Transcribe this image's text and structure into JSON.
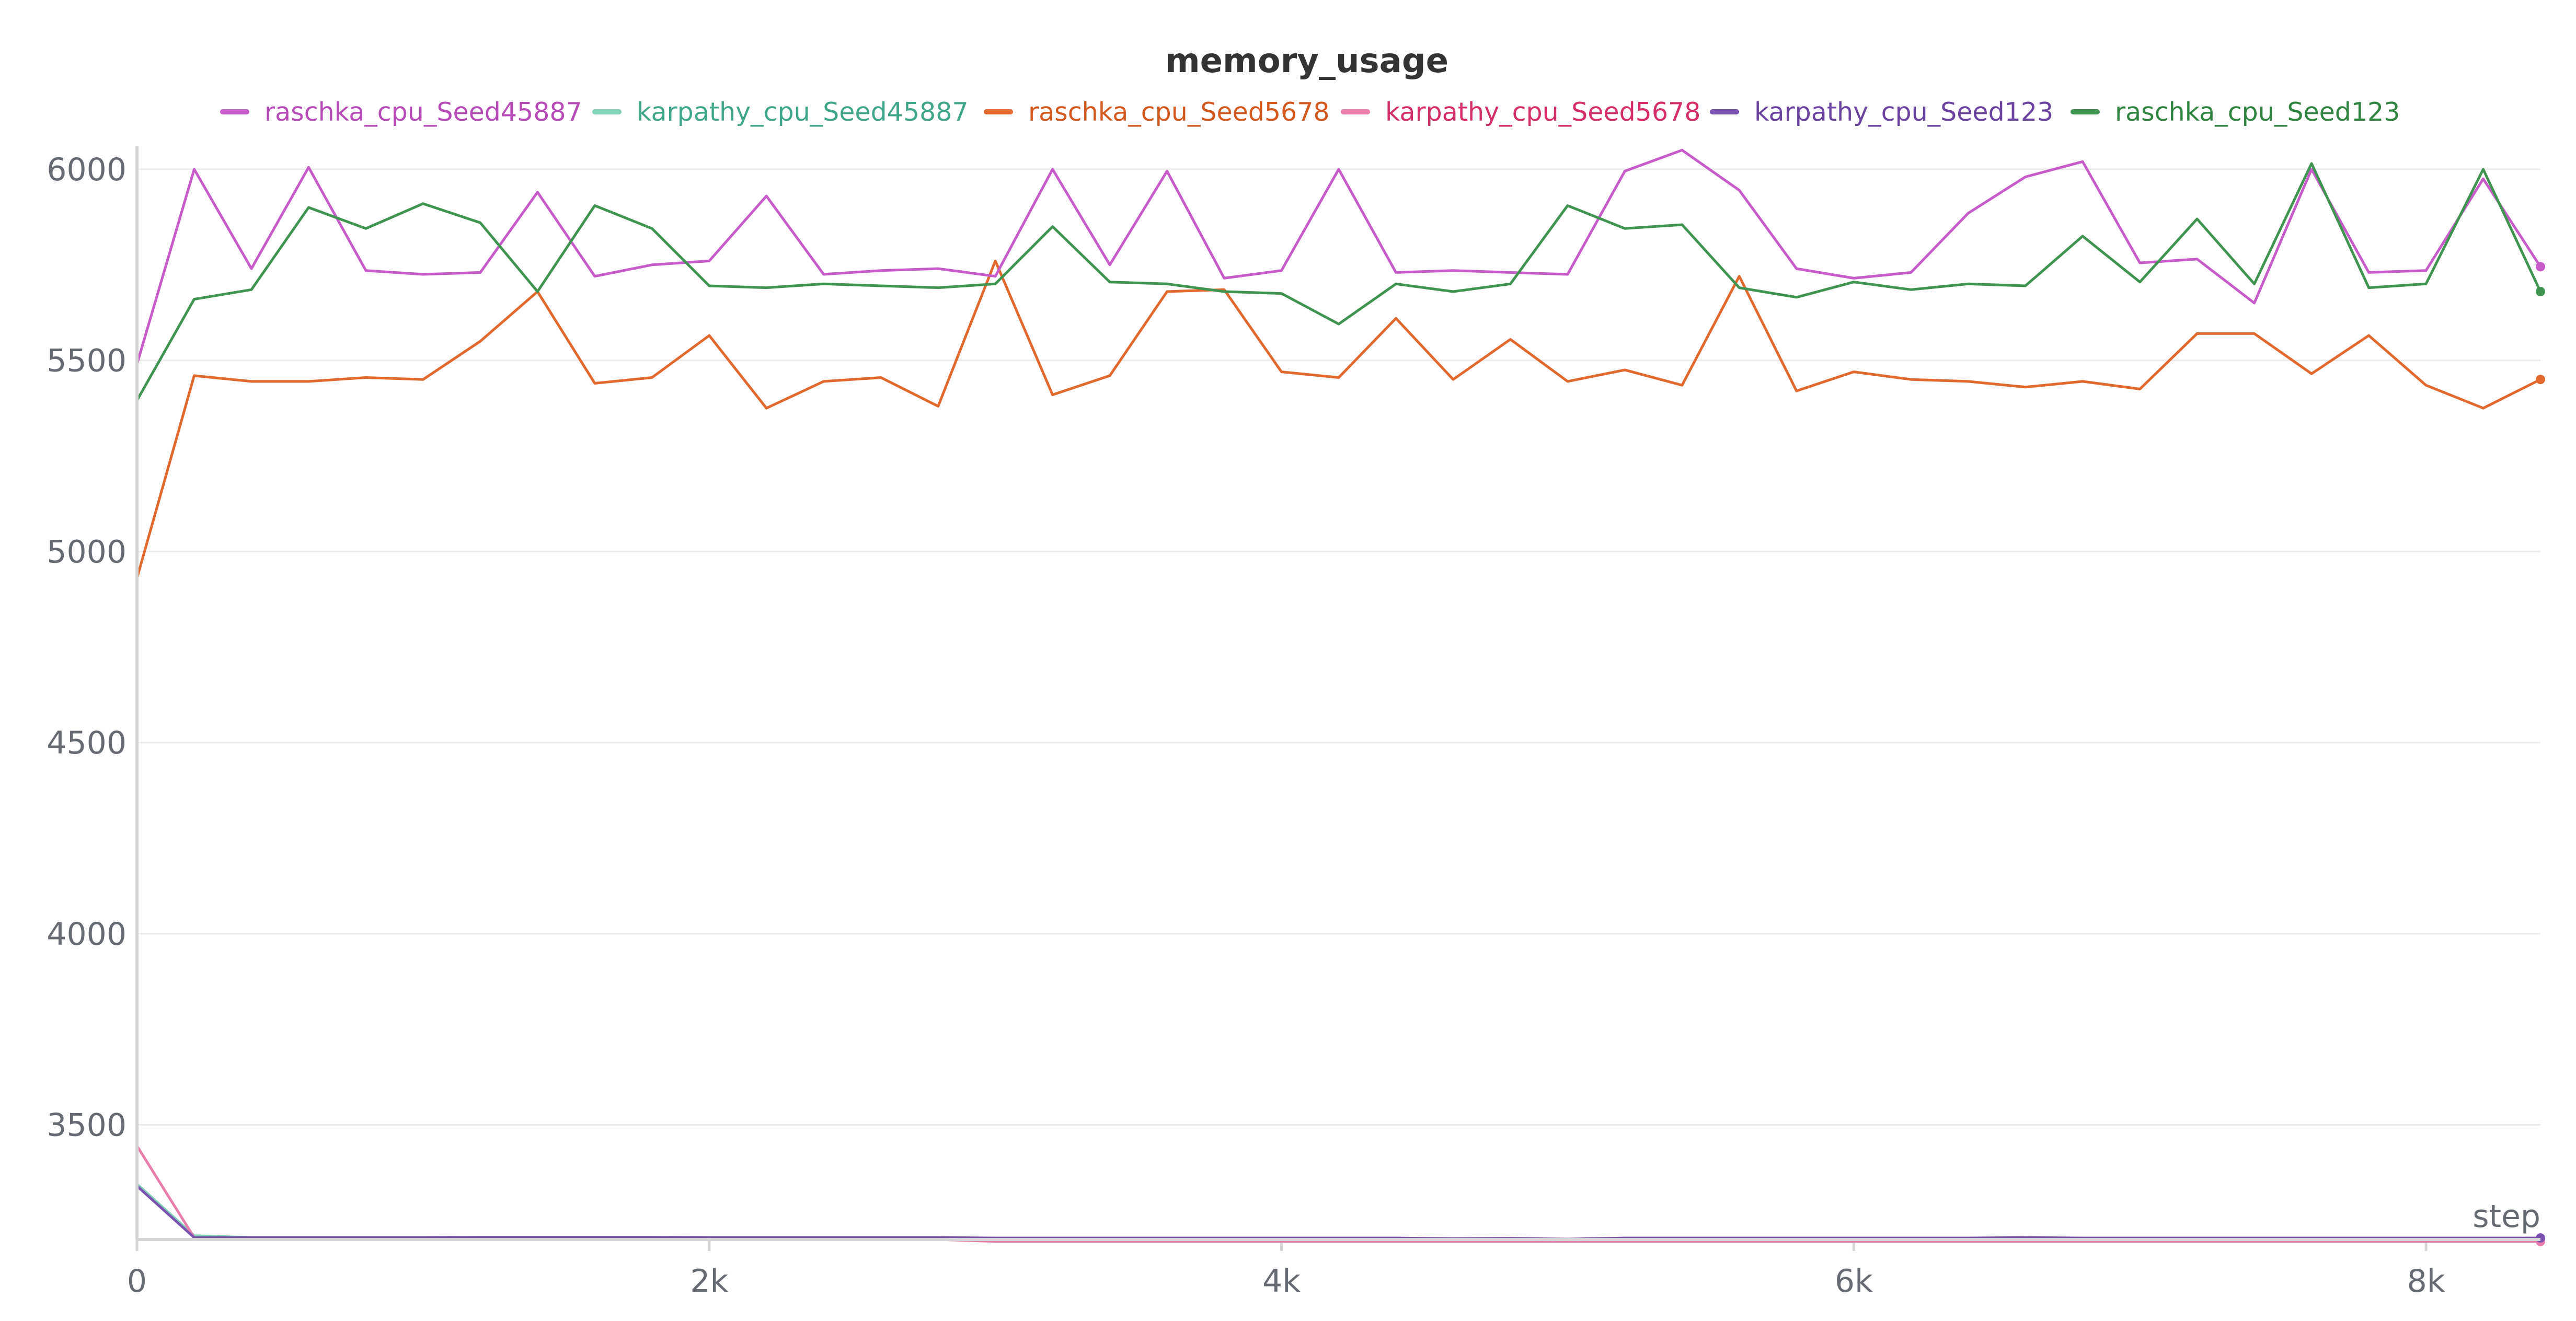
{
  "chart_data": {
    "type": "line",
    "title": "memory_usage",
    "xlabel": "step",
    "ylabel": "",
    "xlim": [
      0,
      8400
    ],
    "ylim": [
      3200,
      6060
    ],
    "x_ticks": [
      0,
      2000,
      4000,
      6000,
      8000
    ],
    "x_tick_labels": [
      "0",
      "2k",
      "4k",
      "6k",
      "8k"
    ],
    "y_ticks": [
      3500,
      4000,
      4500,
      5000,
      5500,
      6000
    ],
    "y_tick_labels": [
      "3500",
      "4000",
      "4500",
      "5000",
      "5500",
      "6000"
    ],
    "grid": true,
    "legend_position": "top",
    "x": [
      0,
      200,
      400,
      600,
      800,
      1000,
      1200,
      1400,
      1600,
      1800,
      2000,
      2200,
      2400,
      2600,
      2800,
      3000,
      3200,
      3400,
      3600,
      3800,
      4000,
      4200,
      4400,
      4600,
      4800,
      5000,
      5200,
      5400,
      5600,
      5800,
      6000,
      6200,
      6400,
      6600,
      6800,
      7000,
      7200,
      7400,
      7600,
      7800,
      8000,
      8200,
      8400
    ],
    "series": [
      {
        "name": "raschka_cpu_Seed45887",
        "color": "#c65bc9",
        "values": [
          5490,
          6000,
          5740,
          6005,
          5735,
          5725,
          5730,
          5940,
          5720,
          5750,
          5760,
          5930,
          5725,
          5735,
          5740,
          5720,
          6000,
          5750,
          5995,
          5715,
          5735,
          6000,
          5730,
          5735,
          5730,
          5725,
          5995,
          6050,
          5945,
          5740,
          5715,
          5730,
          5885,
          5980,
          6020,
          5755,
          5765,
          5650,
          6000,
          5730,
          5735,
          5975,
          5745
        ]
      },
      {
        "name": "karpathy_cpu_Seed45887",
        "color": "#7fd1b7",
        "values": [
          3345,
          3210,
          3205,
          3205,
          3205,
          3205,
          3205,
          3205,
          3205,
          3205,
          3205,
          3205,
          3205,
          3205,
          3205,
          3195,
          3195,
          3195,
          3195,
          3195,
          3195,
          3195,
          3195,
          3195,
          3195,
          3195,
          3195,
          3195,
          3195,
          3195,
          3195,
          3195,
          3195,
          3195,
          3195,
          3195,
          3195,
          3195,
          3195,
          3195,
          3195,
          3195,
          3195
        ]
      },
      {
        "name": "raschka_cpu_Seed5678",
        "color": "#e1692e",
        "values": [
          4930,
          5460,
          5445,
          5445,
          5455,
          5450,
          5550,
          5680,
          5440,
          5455,
          5565,
          5375,
          5445,
          5455,
          5380,
          5760,
          5410,
          5460,
          5680,
          5685,
          5470,
          5455,
          5610,
          5450,
          5555,
          5445,
          5475,
          5435,
          5720,
          5420,
          5470,
          5450,
          5445,
          5430,
          5445,
          5425,
          5570,
          5570,
          5465,
          5565,
          5435,
          5375,
          5450
        ]
      },
      {
        "name": "karpathy_cpu_Seed5678",
        "color": "#e87dab",
        "values": [
          3445,
          3205,
          3200,
          3200,
          3200,
          3200,
          3200,
          3200,
          3200,
          3200,
          3200,
          3200,
          3200,
          3200,
          3200,
          3195,
          3195,
          3195,
          3195,
          3195,
          3195,
          3195,
          3195,
          3195,
          3195,
          3195,
          3195,
          3195,
          3195,
          3195,
          3195,
          3195,
          3195,
          3195,
          3195,
          3195,
          3195,
          3195,
          3195,
          3195,
          3195,
          3195,
          3195
        ]
      },
      {
        "name": "karpathy_cpu_Seed123",
        "color": "#7b52b0",
        "values": [
          3340,
          3205,
          3205,
          3205,
          3205,
          3205,
          3206,
          3206,
          3206,
          3206,
          3205,
          3205,
          3205,
          3205,
          3205,
          3204,
          3204,
          3204,
          3204,
          3204,
          3204,
          3204,
          3204,
          3202,
          3203,
          3201,
          3204,
          3204,
          3204,
          3204,
          3204,
          3204,
          3204,
          3205,
          3204,
          3204,
          3204,
          3204,
          3204,
          3204,
          3204,
          3204,
          3204
        ]
      },
      {
        "name": "raschka_cpu_Seed123",
        "color": "#3f9450",
        "values": [
          5395,
          5660,
          5685,
          5900,
          5845,
          5910,
          5860,
          5680,
          5905,
          5845,
          5695,
          5690,
          5700,
          5695,
          5690,
          5700,
          5850,
          5705,
          5700,
          5680,
          5675,
          5595,
          5700,
          5680,
          5700,
          5905,
          5845,
          5855,
          5690,
          5665,
          5705,
          5685,
          5700,
          5695,
          5825,
          5705,
          5870,
          5700,
          6015,
          5690,
          5700,
          6000,
          5680
        ]
      }
    ]
  },
  "legend_text_colors": [
    "#b64bb8",
    "#3fa68a",
    "#d3581e",
    "#d42d69",
    "#6b42a0",
    "#2f8440"
  ]
}
